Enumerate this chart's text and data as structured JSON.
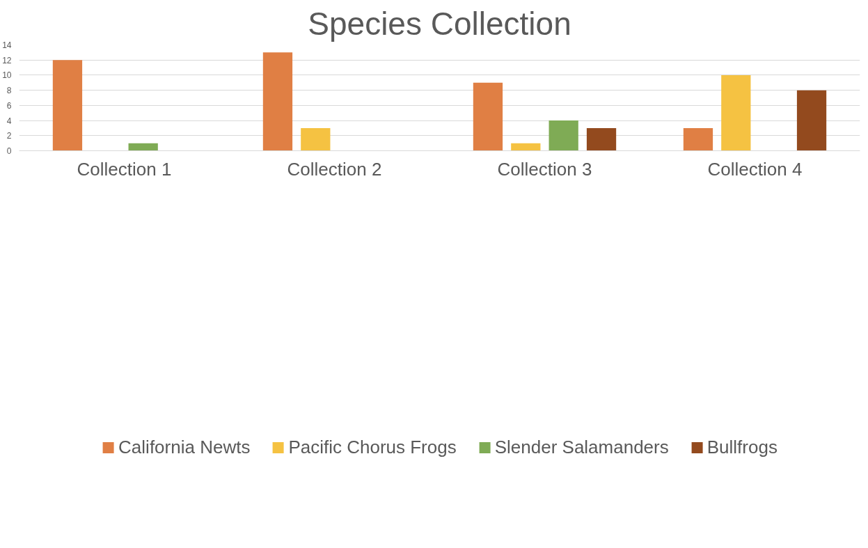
{
  "chart_data": {
    "type": "bar",
    "title": "Species Collection",
    "categories": [
      "Collection 1",
      "Collection 2",
      "Collection 3",
      "Collection 4"
    ],
    "series": [
      {
        "name": "California Newts",
        "color": "#e07f44",
        "values": [
          12,
          13,
          9,
          3
        ]
      },
      {
        "name": "Pacific Chorus Frogs",
        "color": "#f5c242",
        "values": [
          0,
          3,
          1,
          10
        ]
      },
      {
        "name": "Slender Salamanders",
        "color": "#7fab55",
        "values": [
          1,
          0,
          4,
          0
        ]
      },
      {
        "name": "Bullfrogs",
        "color": "#934a1e",
        "values": [
          0,
          0,
          3,
          8
        ]
      }
    ],
    "ylim": [
      0,
      14
    ],
    "yticks": [
      0,
      2,
      4,
      6,
      8,
      10,
      12,
      14
    ],
    "grid": "y",
    "legend": "bottom"
  }
}
